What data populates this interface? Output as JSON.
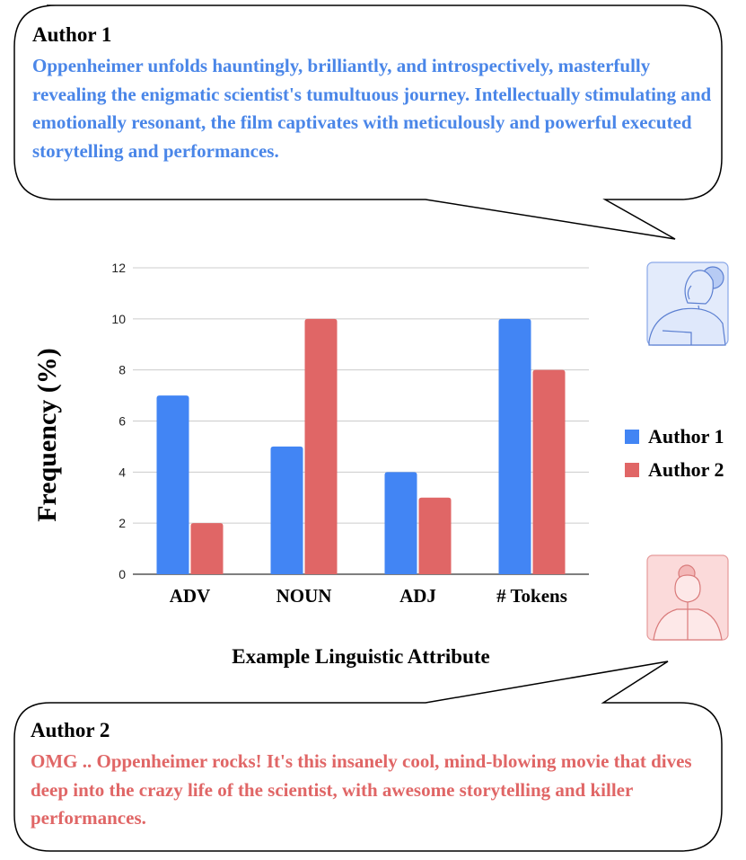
{
  "author1": {
    "name": "Author 1",
    "quote": "Oppenheimer unfolds hauntingly, brilliantly, and introspectively, masterfully revealing the enigmatic scientist's tumultuous journey. Intellectually stimulating and emotionally resonant, the film captivates with meticulously and powerful executed storytelling and performances."
  },
  "author2": {
    "name": "Author 2",
    "quote": "OMG .. Oppenheimer rocks! It's this insanely cool, mind-blowing movie that dives deep into the crazy life of the scientist, with awesome storytelling and killer performances."
  },
  "avatars": {
    "author1": "person-avatar-icon",
    "author2": "person-avatar-icon"
  },
  "chart_data": {
    "type": "bar",
    "categories": [
      "ADV",
      "NOUN",
      "ADJ",
      "# Tokens"
    ],
    "series": [
      {
        "name": "Author 1",
        "values": [
          7,
          5,
          4,
          10
        ],
        "color": "#4285f4"
      },
      {
        "name": "Author 2",
        "values": [
          2,
          10,
          3,
          8
        ],
        "color": "#e06666"
      }
    ],
    "xlabel": "Example Linguistic Attribute",
    "ylabel": "Frequency (%)",
    "ylim": [
      0,
      12
    ],
    "yticks": [
      0,
      2,
      4,
      6,
      8,
      10,
      12
    ],
    "grid": true,
    "legend": "right"
  }
}
